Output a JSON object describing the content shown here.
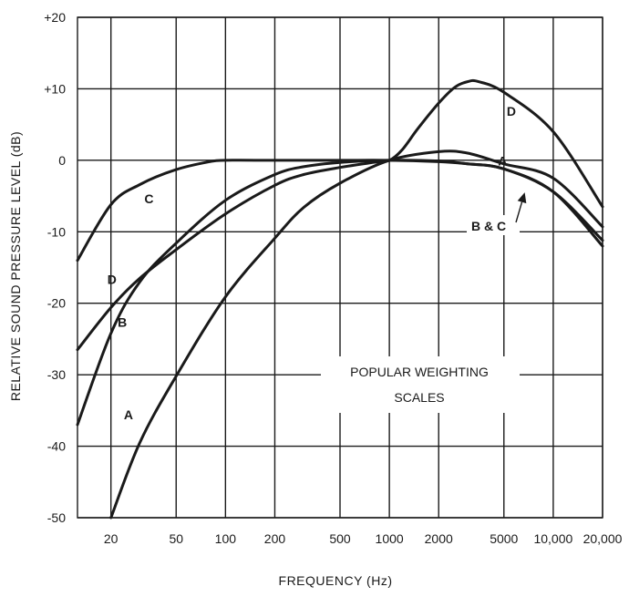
{
  "chart_data": {
    "type": "line",
    "title": "",
    "xlabel": "FREQUENCY (Hz)",
    "ylabel": "RELATIVE SOUND PRESSURE LEVEL (dB)",
    "x_scale": "log",
    "xlim": [
      12.5,
      20000
    ],
    "ylim": [
      -50,
      20
    ],
    "grid": true,
    "x_ticks": [
      20,
      50,
      100,
      200,
      500,
      1000,
      2000,
      5000,
      10000,
      20000
    ],
    "x_tick_labels": [
      "20",
      "50",
      "100",
      "200",
      "500",
      "1000",
      "2000",
      "5000",
      "10,000",
      "20,000"
    ],
    "y_ticks": [
      20,
      10,
      0,
      -10,
      -20,
      -30,
      -40,
      -50
    ],
    "y_tick_labels": [
      "+20",
      "+10",
      "0",
      "-10",
      "-20",
      "-30",
      "-40",
      "-50"
    ],
    "series": [
      {
        "name": "A",
        "label": "A",
        "x": [
          20,
          30,
          50,
          100,
          200,
          300,
          500,
          1000,
          2000,
          3000,
          5000,
          10000,
          20000
        ],
        "y": [
          -50,
          -39.5,
          -30.2,
          -19.1,
          -10.9,
          -6.6,
          -3.2,
          0,
          1.2,
          1.0,
          -0.5,
          -2.5,
          -9.3
        ]
      },
      {
        "name": "B",
        "label": "B",
        "x": [
          12.5,
          20,
          30,
          50,
          100,
          200,
          300,
          500,
          1000,
          2000,
          3000,
          5000,
          10000,
          20000
        ],
        "y": [
          -37,
          -24.2,
          -17,
          -11.6,
          -5.6,
          -2,
          -0.9,
          -0.3,
          0,
          -0.1,
          -0.5,
          -1.2,
          -4.4,
          -12
        ]
      },
      {
        "name": "C",
        "label": "C",
        "x": [
          12.5,
          20,
          30,
          50,
          80,
          100,
          200,
          500,
          1000,
          2000,
          3000,
          5000,
          10000,
          20000
        ],
        "y": [
          -14,
          -6.2,
          -3.4,
          -1.3,
          -0.2,
          0,
          0,
          0,
          0,
          -0.2,
          -0.5,
          -1.2,
          -4.4,
          -11.2
        ]
      },
      {
        "name": "D",
        "label": "D",
        "x": [
          12.5,
          20,
          30,
          50,
          100,
          200,
          300,
          500,
          800,
          1000,
          1200,
          1500,
          2000,
          2500,
          3000,
          3500,
          5000,
          10000,
          20000
        ],
        "y": [
          -26.5,
          -20.6,
          -16.5,
          -12.5,
          -7.5,
          -3.5,
          -2,
          -1,
          -0.3,
          0,
          1.5,
          4.5,
          8,
          10.2,
          11,
          11,
          9.5,
          4,
          -6.5
        ]
      }
    ],
    "annotations": [
      {
        "text": "POPULAR WEIGHTING",
        "x": 1000,
        "y": -30.5
      },
      {
        "text": "SCALES",
        "x": 1000,
        "y": -34.2
      },
      {
        "text": "B & C",
        "x": 3000,
        "y": -10.5,
        "arrow_to": {
          "x": 6700,
          "y": -4.5
        }
      }
    ]
  }
}
